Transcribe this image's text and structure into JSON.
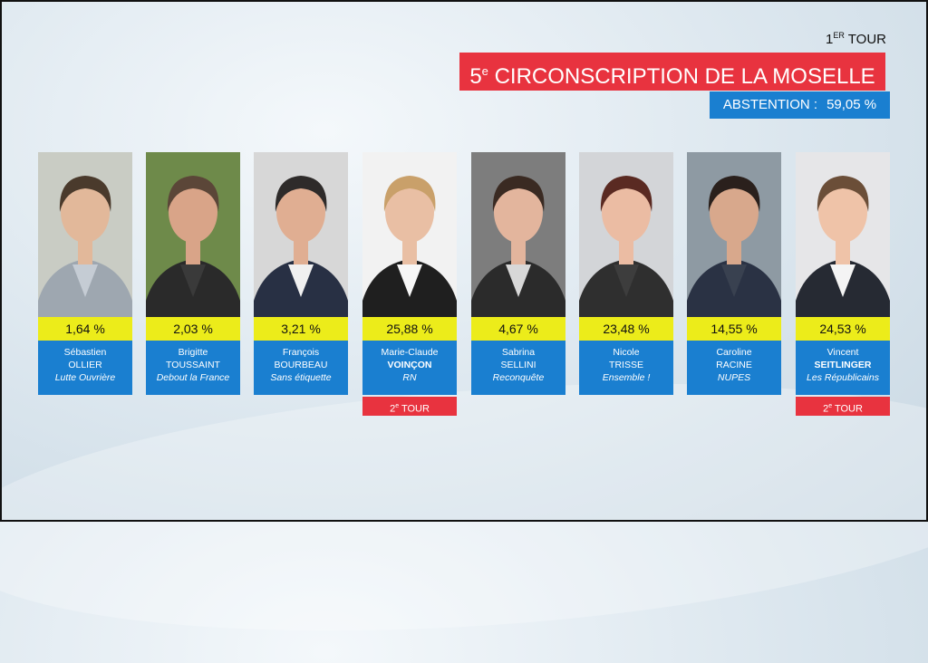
{
  "round": {
    "num": "1",
    "sup": "ER",
    "label": "TOUR"
  },
  "title": {
    "num": "5",
    "sup": "e",
    "text": "CIRCONSCRIPTION DE LA MOSELLE"
  },
  "abstention": {
    "label": "ABSTENTION :",
    "value": "59,05 %"
  },
  "second_round": {
    "num": "2",
    "sup": "e",
    "label": "TOUR"
  },
  "candidates": [
    {
      "pct": "1,64 %",
      "first": "Sébastien",
      "last": "OLLIER",
      "party": "Lutte Ouvrière",
      "qualified": false
    },
    {
      "pct": "2,03 %",
      "first": "Brigitte",
      "last": "TOUSSAINT",
      "party": "Debout la France",
      "qualified": false
    },
    {
      "pct": "3,21 %",
      "first": "François",
      "last": "BOURBEAU",
      "party": "Sans étiquette",
      "qualified": false
    },
    {
      "pct": "25,88 %",
      "first": "Marie-Claude",
      "last": "VOINÇON",
      "party": "RN",
      "qualified": true
    },
    {
      "pct": "4,67 %",
      "first": "Sabrina",
      "last": "SELLINI",
      "party": "Reconquête",
      "qualified": false
    },
    {
      "pct": "23,48 %",
      "first": "Nicole",
      "last": "TRISSE",
      "party": "Ensemble !",
      "qualified": false
    },
    {
      "pct": "14,55 %",
      "first": "Caroline",
      "last": "RACINE",
      "party": "NUPES",
      "qualified": false
    },
    {
      "pct": "24,53 %",
      "first": "Vincent",
      "last": "SEITLINGER",
      "party": "Les Républicains",
      "qualified": true
    }
  ],
  "colors": {
    "red": "#e8333f",
    "blue": "#1a7fd0",
    "yellow": "#ecec1a"
  }
}
